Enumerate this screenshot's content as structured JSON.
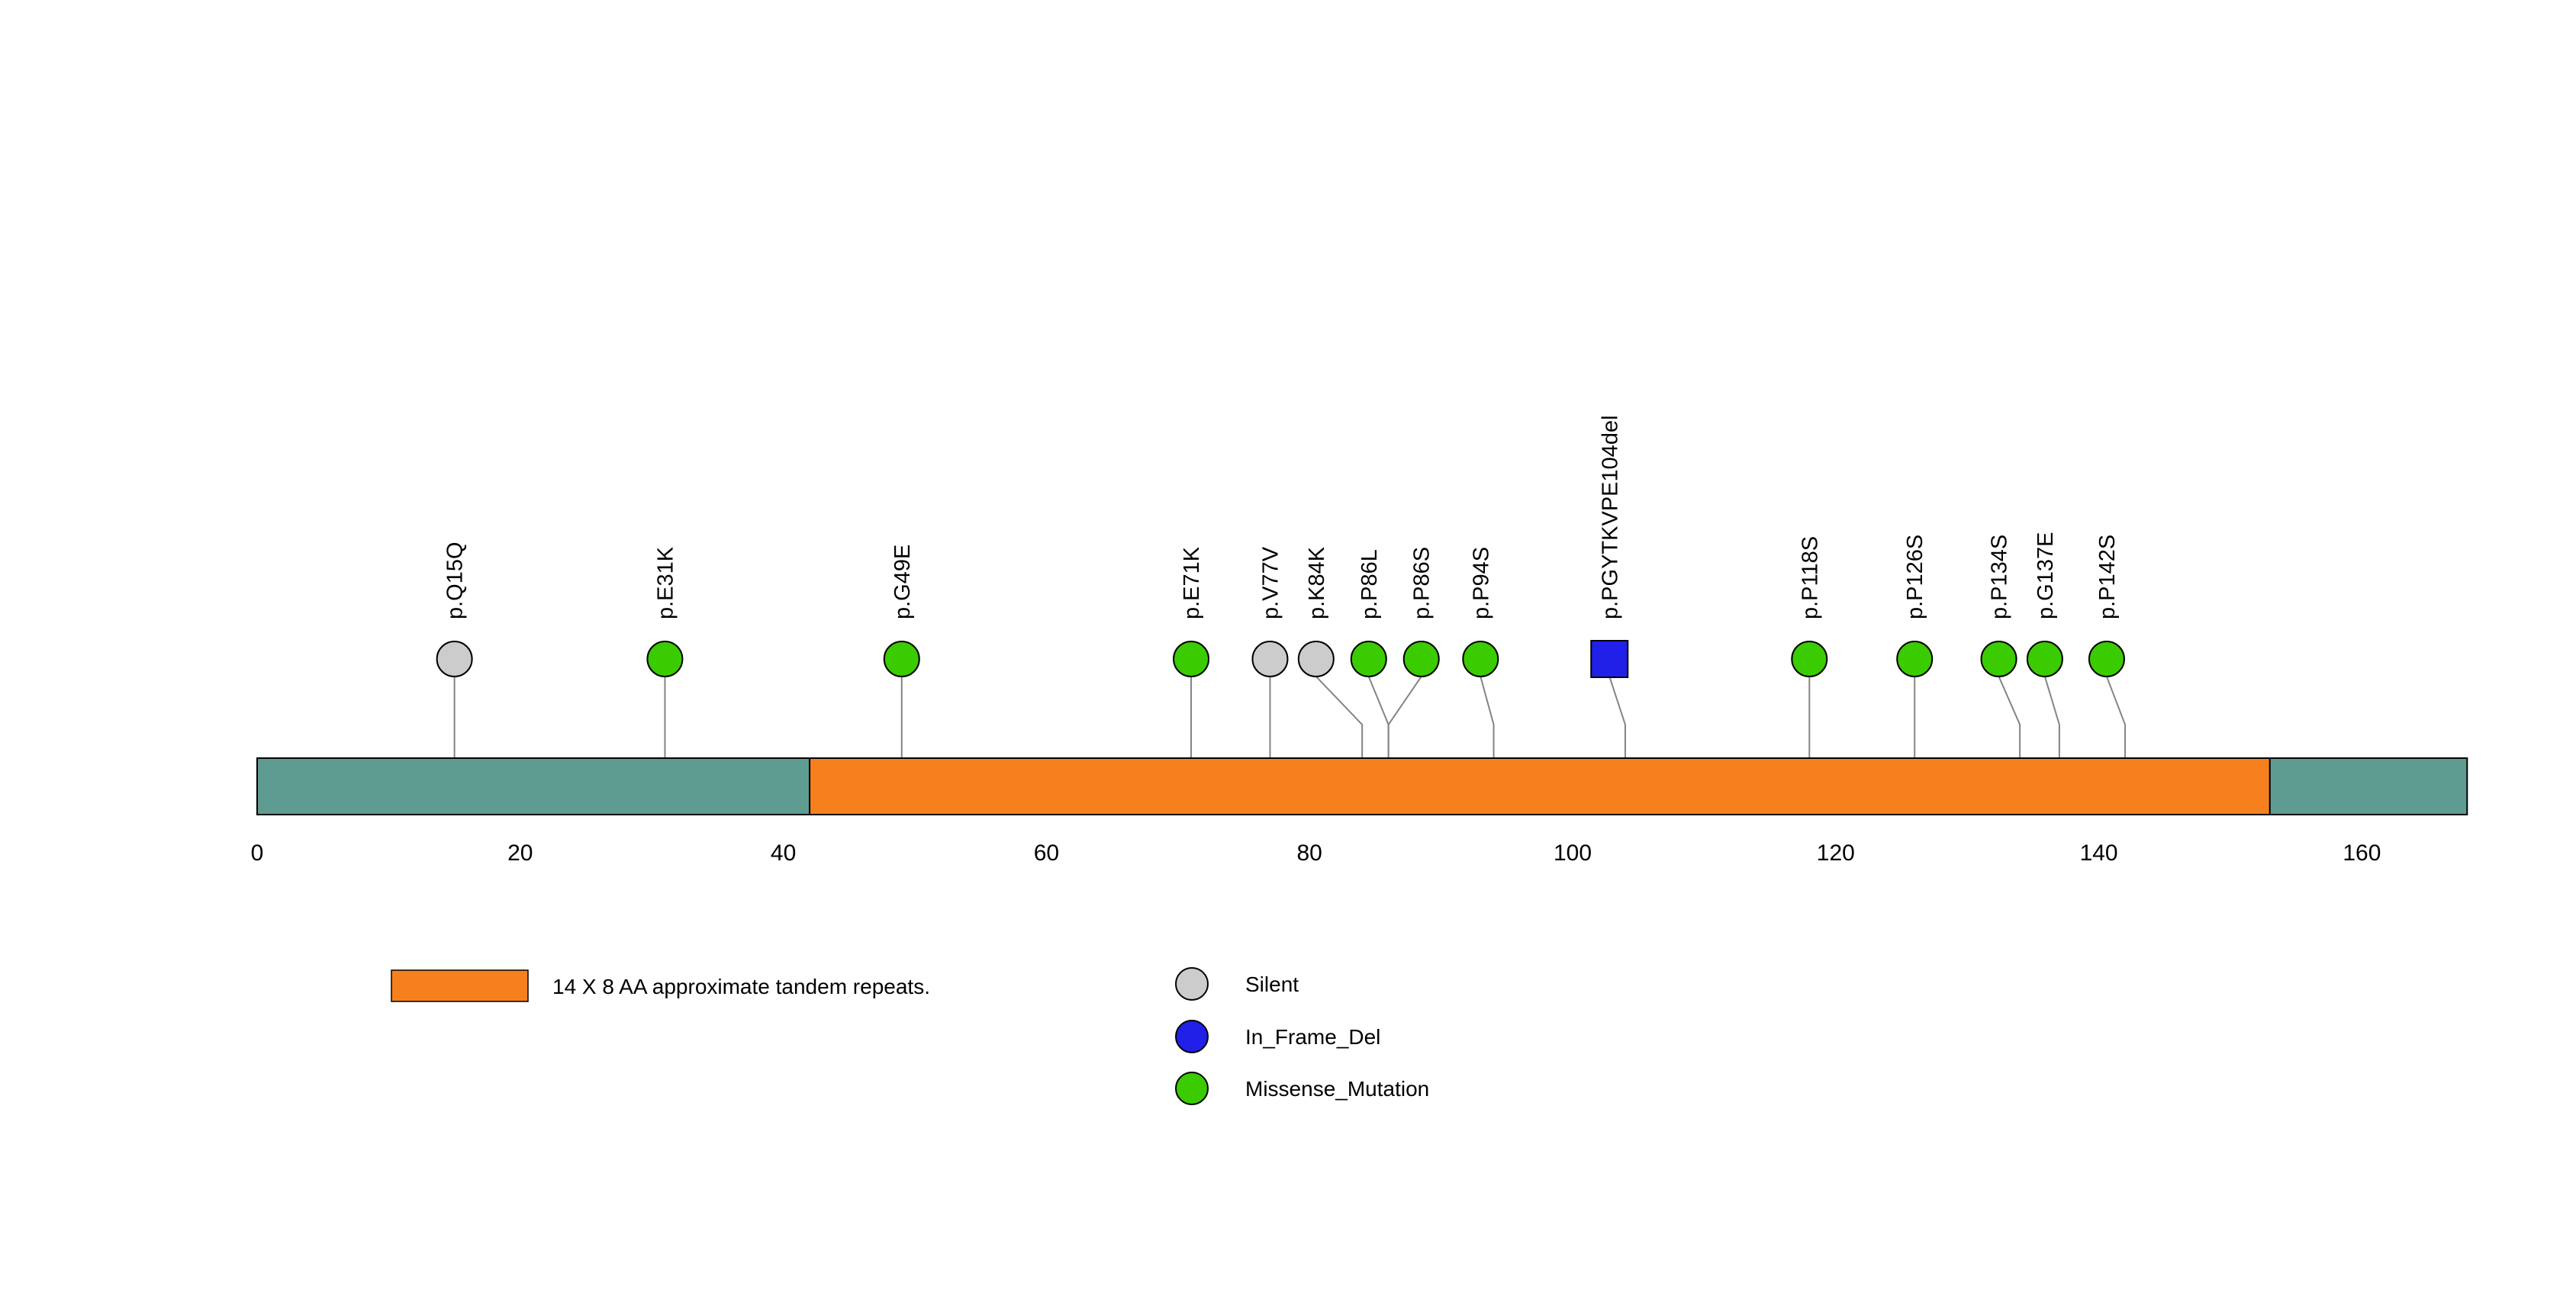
{
  "chart_data": {
    "type": "lollipop",
    "title": "",
    "xlabel": "",
    "ylabel": "",
    "xlim": [
      0,
      168
    ],
    "axis_ticks": [
      0,
      20,
      40,
      60,
      80,
      100,
      120,
      140,
      160
    ],
    "protein": {
      "start": 0,
      "end": 168,
      "color": "#5E9C92"
    },
    "domains": [
      {
        "label": "14 X 8 AA approximate tandem repeats.",
        "start": 42,
        "end": 153,
        "color": "#F7801E"
      }
    ],
    "mutation_types": {
      "Silent": {
        "color": "#CCCCCC",
        "shape": "circle"
      },
      "In_Frame_Del": {
        "color": "#2020E8",
        "shape": "square"
      },
      "Missense_Mutation": {
        "color": "#3ACC00",
        "shape": "circle"
      }
    },
    "mutations": [
      {
        "label": "p.Q15Q",
        "pos": 15,
        "type": "Silent"
      },
      {
        "label": "p.E31K",
        "pos": 31,
        "type": "Missense_Mutation"
      },
      {
        "label": "p.G49E",
        "pos": 49,
        "type": "Missense_Mutation"
      },
      {
        "label": "p.E71K",
        "pos": 71,
        "type": "Missense_Mutation"
      },
      {
        "label": "p.V77V",
        "pos": 77,
        "type": "Silent"
      },
      {
        "label": "p.K84K",
        "pos": 84,
        "display_pos": 80.5,
        "type": "Silent"
      },
      {
        "label": "p.P86L",
        "pos": 86,
        "display_pos": 84.5,
        "type": "Missense_Mutation"
      },
      {
        "label": "p.P86S",
        "pos": 86,
        "display_pos": 88.5,
        "type": "Missense_Mutation"
      },
      {
        "label": "p.P94S",
        "pos": 94,
        "display_pos": 93,
        "type": "Missense_Mutation"
      },
      {
        "label": "p.PGYTKVPE104del",
        "pos": 104,
        "display_pos": 102.8,
        "type": "In_Frame_Del"
      },
      {
        "label": "p.P118S",
        "pos": 118,
        "type": "Missense_Mutation"
      },
      {
        "label": "p.P126S",
        "pos": 126,
        "type": "Missense_Mutation"
      },
      {
        "label": "p.P134S",
        "pos": 134,
        "display_pos": 132.4,
        "type": "Missense_Mutation"
      },
      {
        "label": "p.G137E",
        "pos": 137,
        "display_pos": 135.9,
        "type": "Missense_Mutation"
      },
      {
        "label": "p.P142S",
        "pos": 142,
        "display_pos": 140.6,
        "type": "Missense_Mutation"
      }
    ],
    "legend": {
      "domain_label": "14 X 8 AA approximate tandem repeats.",
      "entries": [
        {
          "label": "Silent",
          "color": "#CCCCCC"
        },
        {
          "label": "In_Frame_Del",
          "color": "#2020E8"
        },
        {
          "label": "Missense_Mutation",
          "color": "#3ACC00"
        }
      ]
    },
    "layout_hints": {
      "legend_position": "bottom-left",
      "grid": false,
      "label_rotation": -90
    }
  }
}
